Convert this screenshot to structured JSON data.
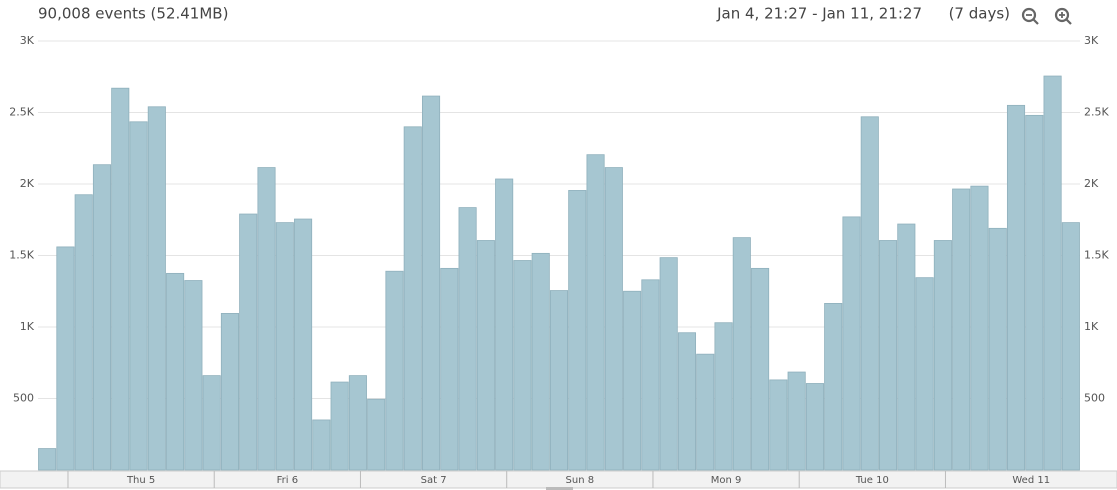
{
  "header": {
    "summary": "90,008 events (52.41MB)",
    "range": "Jan 4, 21:27 - Jan 11, 21:27",
    "duration": "(7 days)"
  },
  "chart_data": {
    "type": "bar",
    "color": "#a6c6d1",
    "categories": [
      null,
      null,
      null,
      null,
      null,
      null,
      null,
      null,
      null,
      null,
      null,
      null,
      null,
      null,
      null,
      null,
      null,
      null,
      null,
      null,
      null,
      null,
      null,
      null,
      null,
      null,
      null,
      null,
      null,
      null,
      null,
      null,
      null,
      null,
      null,
      null,
      null,
      null,
      null,
      null,
      null,
      null,
      null,
      null,
      null,
      null,
      null,
      null,
      null,
      null,
      null,
      null,
      null,
      null,
      null,
      null,
      null
    ],
    "values": [
      150,
      1560,
      1925,
      2135,
      2670,
      2435,
      2540,
      1375,
      1325,
      660,
      1095,
      1790,
      2115,
      1730,
      1755,
      350,
      615,
      660,
      495,
      1390,
      2400,
      2615,
      1410,
      1835,
      1605,
      2035,
      1465,
      1515,
      1255,
      1955,
      2205,
      2115,
      1250,
      1330,
      1485,
      960,
      810,
      1030,
      1625,
      1410,
      630,
      685,
      605,
      1165,
      1770,
      2470,
      1605,
      1720,
      1345,
      1605,
      1965,
      1985,
      1690,
      2550,
      2480,
      2755,
      1730
    ],
    "x_labels": [
      "Thu 5",
      "Fri 6",
      "Sat 7",
      "Sun 8",
      "Mon 9",
      "Tue 10",
      "Wed 11"
    ],
    "ylim": [
      0,
      3000
    ],
    "yticks": [
      500,
      {
        "value": 1000,
        "label": "1K"
      },
      {
        "value": 1500,
        "label": "1.5K"
      },
      {
        "value": 2000,
        "label": "2K"
      },
      {
        "value": 2500,
        "label": "2.5K"
      },
      {
        "value": 3000,
        "label": "3K"
      }
    ],
    "grid": true
  }
}
